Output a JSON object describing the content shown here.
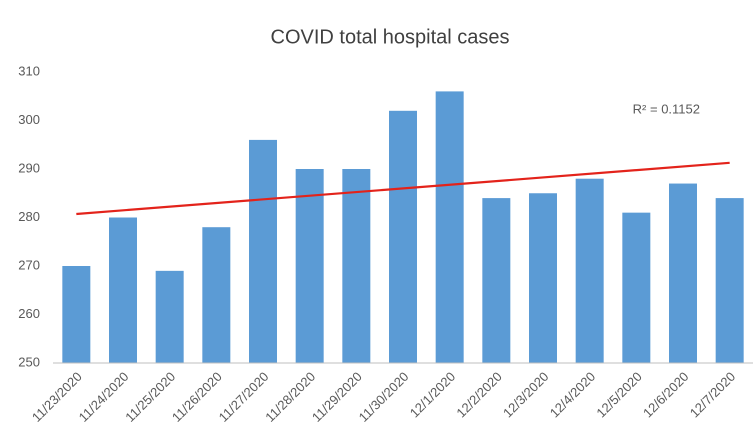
{
  "chart_data": {
    "type": "bar",
    "title": "COVID total hospital cases",
    "categories": [
      "11/23/2020",
      "11/24/2020",
      "11/25/2020",
      "11/26/2020",
      "11/27/2020",
      "11/28/2020",
      "11/29/2020",
      "11/30/2020",
      "12/1/2020",
      "12/2/2020",
      "12/3/2020",
      "12/4/2020",
      "12/5/2020",
      "12/6/2020",
      "12/7/2020"
    ],
    "values": [
      270,
      280,
      269,
      278,
      296,
      290,
      290,
      302,
      306,
      284,
      285,
      288,
      281,
      287,
      284
    ],
    "color": "#5b9bd5",
    "ylim": [
      250,
      310
    ],
    "yticks": [
      250,
      260,
      270,
      280,
      290,
      300,
      310
    ],
    "grid": false,
    "trendline": {
      "type": "linear",
      "color": "#e3231b"
    },
    "annotation": "R² = 0.1152"
  }
}
